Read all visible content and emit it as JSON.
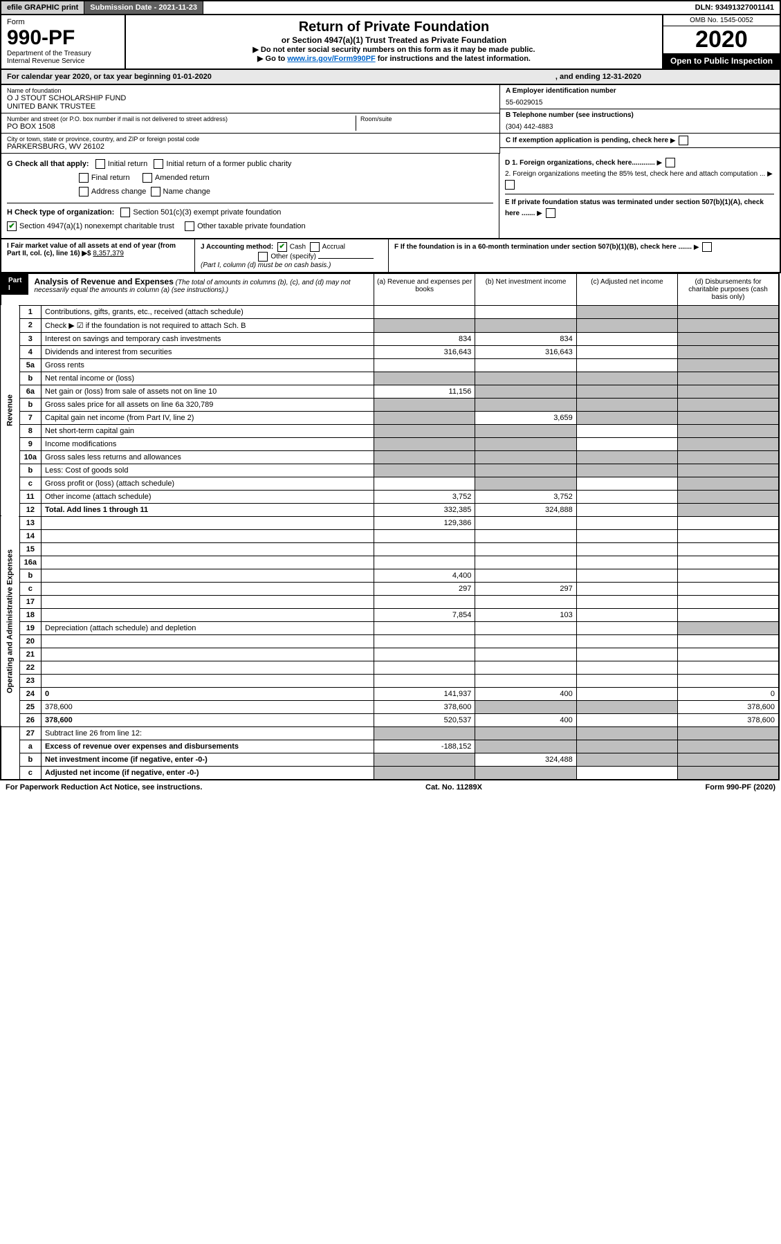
{
  "topbar": {
    "efile": "efile GRAPHIC print",
    "subdate_label": "Submission Date - 2021-11-23",
    "dln": "DLN: 93491327001141"
  },
  "header": {
    "form_word": "Form",
    "form_num": "990-PF",
    "dept": "Department of the Treasury",
    "irs": "Internal Revenue Service",
    "title": "Return of Private Foundation",
    "subtitle": "or Section 4947(a)(1) Trust Treated as Private Foundation",
    "note1": "▶ Do not enter social security numbers on this form as it may be made public.",
    "note2_pre": "▶ Go to ",
    "note2_link": "www.irs.gov/Form990PF",
    "note2_post": " for instructions and the latest information.",
    "omb": "OMB No. 1545-0052",
    "year": "2020",
    "open": "Open to Public Inspection"
  },
  "calendar": {
    "text1": "For calendar year 2020, or tax year beginning 01-01-2020",
    "text2": ", and ending 12-31-2020"
  },
  "info": {
    "name_label": "Name of foundation",
    "name": "O J STOUT SCHOLARSHIP FUND\nUNITED BANK TRUSTEE",
    "addr_label": "Number and street (or P.O. box number if mail is not delivered to street address)",
    "addr": "PO BOX 1508",
    "room_label": "Room/suite",
    "city_label": "City or town, state or province, country, and ZIP or foreign postal code",
    "city": "PARKERSBURG, WV  26102",
    "ein_label": "A Employer identification number",
    "ein": "55-6029015",
    "phone_label": "B Telephone number (see instructions)",
    "phone": "(304) 442-4883",
    "c_label": "C If exemption application is pending, check here"
  },
  "g": {
    "label": "G Check all that apply:",
    "opts": [
      "Initial return",
      "Initial return of a former public charity",
      "Final return",
      "Amended return",
      "Address change",
      "Name change"
    ]
  },
  "h": {
    "label": "H Check type of organization:",
    "opt1": "Section 501(c)(3) exempt private foundation",
    "opt2": "Section 4947(a)(1) nonexempt charitable trust",
    "opt3": "Other taxable private foundation"
  },
  "d": {
    "d1": "D 1. Foreign organizations, check here............",
    "d2": "2. Foreign organizations meeting the 85% test, check here and attach computation ...",
    "e": "E  If private foundation status was terminated under section 507(b)(1)(A), check here .......",
    "f": "F  If the foundation is in a 60-month termination under section 507(b)(1)(B), check here ......."
  },
  "i": {
    "label": "I Fair market value of all assets at end of year (from Part II, col. (c), line 16) ▶$",
    "value": "8,357,379"
  },
  "j": {
    "label": "J Accounting method:",
    "cash": "Cash",
    "accrual": "Accrual",
    "other": "Other (specify)",
    "note": "(Part I, column (d) must be on cash basis.)"
  },
  "part1": {
    "label": "Part I",
    "title": "Analysis of Revenue and Expenses",
    "title_note": "(The total of amounts in columns (b), (c), and (d) may not necessarily equal the amounts in column (a) (see instructions).)",
    "col_a": "(a) Revenue and expenses per books",
    "col_b": "(b) Net investment income",
    "col_c": "(c) Adjusted net income",
    "col_d": "(d) Disbursements for charitable purposes (cash basis only)"
  },
  "sections": {
    "revenue": "Revenue",
    "operating": "Operating and Administrative Expenses"
  },
  "rows": [
    {
      "n": "1",
      "d": "Contributions, gifts, grants, etc., received (attach schedule)",
      "a": "",
      "b": "",
      "c_shade": true,
      "d_shade": true
    },
    {
      "n": "2",
      "d": "Check ▶ ☑ if the foundation is not required to attach Sch. B",
      "a_shade": true,
      "b_shade": true,
      "c_shade": true,
      "d_shade": true
    },
    {
      "n": "3",
      "d": "Interest on savings and temporary cash investments",
      "a": "834",
      "b": "834",
      "c": "",
      "d_shade": true
    },
    {
      "n": "4",
      "d": "Dividends and interest from securities",
      "a": "316,643",
      "b": "316,643",
      "c": "",
      "d_shade": true
    },
    {
      "n": "5a",
      "d": "Gross rents",
      "a": "",
      "b": "",
      "c": "",
      "d_shade": true
    },
    {
      "n": "b",
      "d": "Net rental income or (loss)",
      "a_shade": true,
      "b_shade": true,
      "c_shade": true,
      "d_shade": true
    },
    {
      "n": "6a",
      "d": "Net gain or (loss) from sale of assets not on line 10",
      "a": "11,156",
      "b_shade": true,
      "c_shade": true,
      "d_shade": true
    },
    {
      "n": "b",
      "d": "Gross sales price for all assets on line 6a           320,789",
      "a_shade": true,
      "b_shade": true,
      "c_shade": true,
      "d_shade": true
    },
    {
      "n": "7",
      "d": "Capital gain net income (from Part IV, line 2)",
      "a_shade": true,
      "b": "3,659",
      "c_shade": true,
      "d_shade": true
    },
    {
      "n": "8",
      "d": "Net short-term capital gain",
      "a_shade": true,
      "b_shade": true,
      "c": "",
      "d_shade": true
    },
    {
      "n": "9",
      "d": "Income modifications",
      "a_shade": true,
      "b_shade": true,
      "c": "",
      "d_shade": true
    },
    {
      "n": "10a",
      "d": "Gross sales less returns and allowances",
      "a_shade": true,
      "b_shade": true,
      "c_shade": true,
      "d_shade": true
    },
    {
      "n": "b",
      "d": "Less: Cost of goods sold",
      "a_shade": true,
      "b_shade": true,
      "c_shade": true,
      "d_shade": true
    },
    {
      "n": "c",
      "d": "Gross profit or (loss) (attach schedule)",
      "a": "",
      "b_shade": true,
      "c": "",
      "d_shade": true
    },
    {
      "n": "11",
      "d": "Other income (attach schedule)",
      "a": "3,752",
      "b": "3,752",
      "c": "",
      "d_shade": true
    },
    {
      "n": "12",
      "d": "Total. Add lines 1 through 11",
      "bold": true,
      "a": "332,385",
      "b": "324,888",
      "c": "",
      "d_shade": true
    },
    {
      "section": "operating"
    },
    {
      "n": "13",
      "d": "",
      "a": "129,386",
      "b": "",
      "c": ""
    },
    {
      "n": "14",
      "d": "",
      "a": "",
      "b": "",
      "c": ""
    },
    {
      "n": "15",
      "d": "",
      "a": "",
      "b": "",
      "c": ""
    },
    {
      "n": "16a",
      "d": "",
      "a": "",
      "b": "",
      "c": ""
    },
    {
      "n": "b",
      "d": "",
      "a": "4,400",
      "b": "",
      "c": ""
    },
    {
      "n": "c",
      "d": "",
      "a": "297",
      "b": "297",
      "c": ""
    },
    {
      "n": "17",
      "d": "",
      "a": "",
      "b": "",
      "c": ""
    },
    {
      "n": "18",
      "d": "",
      "a": "7,854",
      "b": "103",
      "c": ""
    },
    {
      "n": "19",
      "d": "Depreciation (attach schedule) and depletion",
      "a": "",
      "b": "",
      "c": "",
      "d_shade": true
    },
    {
      "n": "20",
      "d": "",
      "a": "",
      "b": "",
      "c": ""
    },
    {
      "n": "21",
      "d": "",
      "a": "",
      "b": "",
      "c": ""
    },
    {
      "n": "22",
      "d": "",
      "a": "",
      "b": "",
      "c": ""
    },
    {
      "n": "23",
      "d": "",
      "a": "",
      "b": "",
      "c": ""
    },
    {
      "n": "24",
      "d": "0",
      "bold": true,
      "a": "141,937",
      "b": "400",
      "c": ""
    },
    {
      "n": "25",
      "d": "378,600",
      "a": "378,600",
      "b_shade": true,
      "c_shade": true
    },
    {
      "n": "26",
      "d": "378,600",
      "bold": true,
      "a": "520,537",
      "b": "400",
      "c": ""
    },
    {
      "section": "end"
    },
    {
      "n": "27",
      "d": "Subtract line 26 from line 12:",
      "a_shade": true,
      "b_shade": true,
      "c_shade": true,
      "d_shade": true
    },
    {
      "n": "a",
      "d": "Excess of revenue over expenses and disbursements",
      "bold": true,
      "a": "-188,152",
      "b_shade": true,
      "c_shade": true,
      "d_shade": true
    },
    {
      "n": "b",
      "d": "Net investment income (if negative, enter -0-)",
      "bold": true,
      "a_shade": true,
      "b": "324,488",
      "c_shade": true,
      "d_shade": true
    },
    {
      "n": "c",
      "d": "Adjusted net income (if negative, enter -0-)",
      "bold": true,
      "a_shade": true,
      "b_shade": true,
      "c": "",
      "d_shade": true
    }
  ],
  "footer": {
    "left": "For Paperwork Reduction Act Notice, see instructions.",
    "mid": "Cat. No. 11289X",
    "right": "Form 990-PF (2020)"
  }
}
